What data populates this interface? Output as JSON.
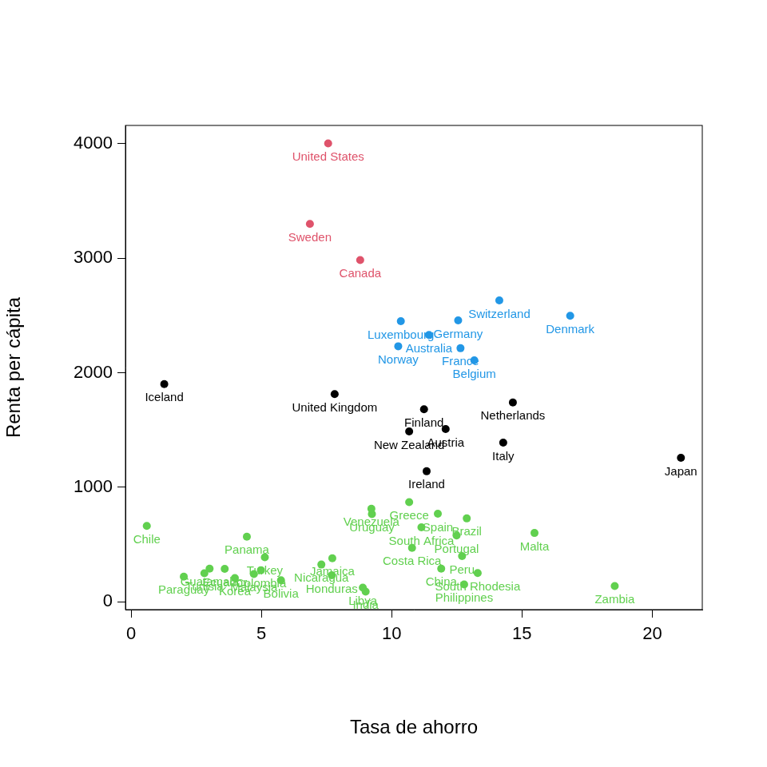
{
  "chart_data": {
    "type": "scatter",
    "x_label": "Tasa de ahorro",
    "y_label": "Renta per cápita",
    "xlim": [
      -0.22,
      21.92
    ],
    "ylim": [
      -67.6,
      4158.4
    ],
    "xticks": [
      0,
      5,
      10,
      15,
      20
    ],
    "yticks": [
      0,
      1000,
      2000,
      3000,
      4000
    ],
    "grid": false,
    "marker": "circle",
    "series": [
      {
        "color": "#DF536B",
        "labels": [
          "United States",
          "Sweden",
          "Canada"
        ],
        "x": [
          7.56,
          6.86,
          8.79
        ],
        "values": [
          4001.89,
          3299.49,
          2982.88
        ]
      },
      {
        "color": "#2297E6",
        "labels": [
          "Australia",
          "Belgium",
          "Denmark",
          "France",
          "Germany",
          "Luxembourg",
          "Norway",
          "Switzerland"
        ],
        "x": [
          11.43,
          13.17,
          16.85,
          12.64,
          12.55,
          10.35,
          10.25,
          14.13
        ],
        "values": [
          2329.68,
          2108.47,
          2496.53,
          2213.82,
          2457.12,
          2449.39,
          2231.03,
          2630.96
        ]
      },
      {
        "color": "#000000",
        "labels": [
          "Austria",
          "Finland",
          "Iceland",
          "Ireland",
          "Italy",
          "Japan",
          "Netherlands",
          "New Zealand",
          "United Kingdom"
        ],
        "x": [
          12.07,
          11.24,
          1.27,
          11.34,
          14.28,
          21.1,
          14.65,
          10.67,
          7.81
        ],
        "values": [
          1507.99,
          1681.25,
          1900.1,
          1139.95,
          1390,
          1257.28,
          1740.7,
          1487.52,
          1813.93
        ]
      },
      {
        "color": "#61D04F",
        "labels": [
          "Bolivia",
          "Brazil",
          "Chile",
          "China",
          "Colombia",
          "Costa Rica",
          "Ecuador",
          "Greece",
          "Guatamala",
          "Honduras",
          "India",
          "Jamaica",
          "Korea",
          "Libya",
          "Malta",
          "Malaysia",
          "Nicaragua",
          "Panama",
          "Paraguay",
          "Peru",
          "Philippines",
          "Portugal",
          "South Africa",
          "South Rhodesia",
          "Spain",
          "Turkey",
          "Tunisia",
          "Uruguay",
          "Venezuela",
          "Zambia"
        ],
        "x": [
          5.75,
          12.88,
          0.6,
          11.9,
          4.98,
          10.78,
          3.59,
          10.67,
          3.01,
          7.7,
          9.0,
          7.72,
          3.98,
          8.89,
          15.48,
          4.71,
          7.3,
          4.44,
          2.02,
          12.7,
          12.78,
          12.49,
          11.14,
          13.3,
          11.77,
          5.13,
          2.81,
          9.24,
          9.22,
          18.56
        ],
        "values": [
          189.13,
          728.47,
          662.86,
          289.52,
          276.65,
          471.24,
          287.77,
          870.85,
          289.71,
          232.44,
          88.94,
          380.47,
          207.68,
          123.58,
          601.05,
          242.69,
          325.54,
          568.56,
          220.56,
          400.06,
          152.01,
          579.51,
          651.11,
          250.96,
          768.79,
          389.66,
          249.87,
          766.54,
          813.39,
          138.33
        ]
      }
    ]
  }
}
